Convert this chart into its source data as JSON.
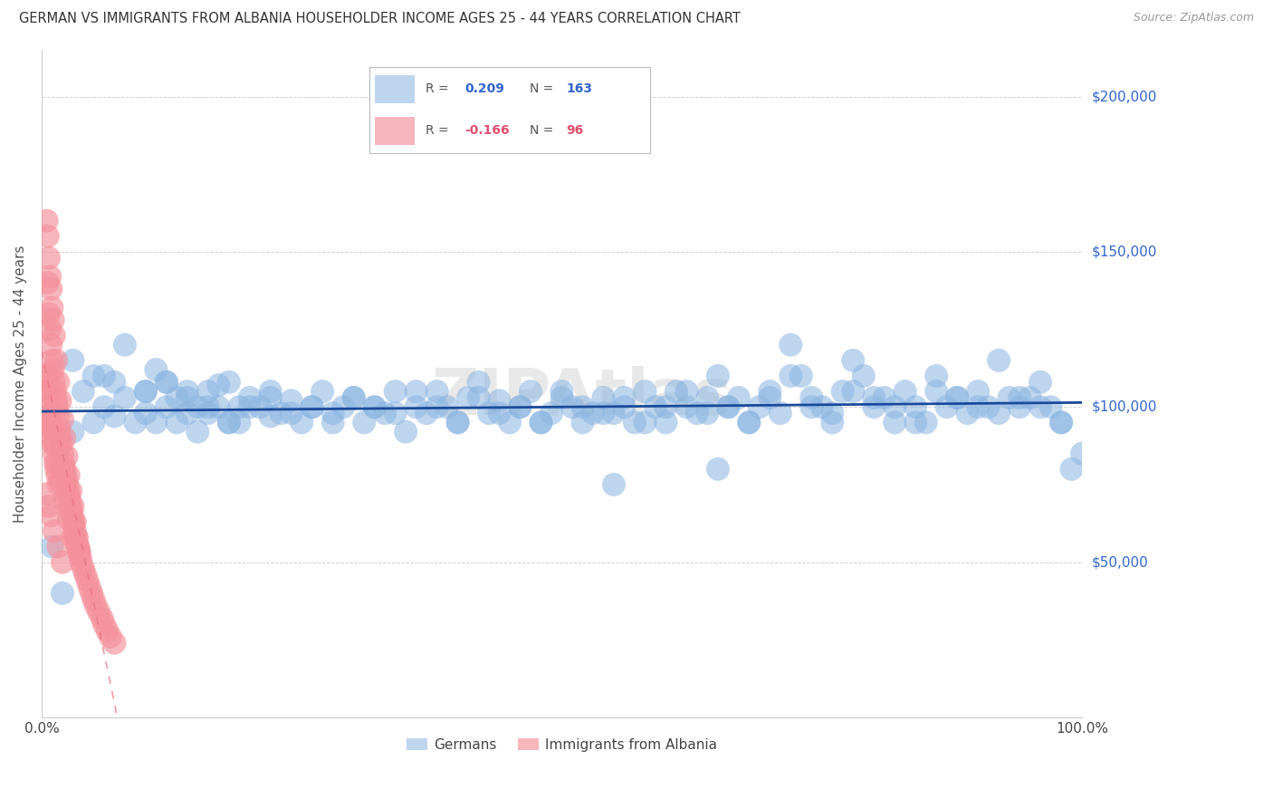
{
  "title": "GERMAN VS IMMIGRANTS FROM ALBANIA HOUSEHOLDER INCOME AGES 25 - 44 YEARS CORRELATION CHART",
  "source": "Source: ZipAtlas.com",
  "ylabel": "Householder Income Ages 25 - 44 years",
  "y_tick_values": [
    50000,
    100000,
    150000,
    200000
  ],
  "y_tick_labels": [
    "$50,000",
    "$100,000",
    "$150,000",
    "$200,000"
  ],
  "y_lim": [
    0,
    215000
  ],
  "x_lim": [
    0,
    1.0
  ],
  "watermark": "ZIPAtlas",
  "legend_german_R": "0.209",
  "legend_german_N": "163",
  "legend_albania_R": "-0.166",
  "legend_albania_N": "96",
  "blue_color": "#89B4E0",
  "pink_color": "#F4909A",
  "blue_line_color": "#1a4a9a",
  "pink_line_color": "#E87080",
  "german_x": [
    0.02,
    0.03,
    0.04,
    0.05,
    0.05,
    0.06,
    0.07,
    0.07,
    0.08,
    0.09,
    0.1,
    0.1,
    0.11,
    0.11,
    0.12,
    0.12,
    0.13,
    0.13,
    0.14,
    0.14,
    0.15,
    0.15,
    0.16,
    0.16,
    0.17,
    0.17,
    0.18,
    0.18,
    0.19,
    0.19,
    0.2,
    0.21,
    0.22,
    0.22,
    0.23,
    0.24,
    0.25,
    0.26,
    0.27,
    0.28,
    0.29,
    0.3,
    0.31,
    0.32,
    0.33,
    0.34,
    0.35,
    0.36,
    0.37,
    0.38,
    0.39,
    0.4,
    0.41,
    0.42,
    0.43,
    0.44,
    0.45,
    0.46,
    0.47,
    0.48,
    0.49,
    0.5,
    0.51,
    0.52,
    0.53,
    0.54,
    0.55,
    0.56,
    0.57,
    0.58,
    0.59,
    0.6,
    0.61,
    0.62,
    0.63,
    0.64,
    0.65,
    0.66,
    0.67,
    0.68,
    0.69,
    0.7,
    0.71,
    0.72,
    0.73,
    0.74,
    0.75,
    0.76,
    0.77,
    0.78,
    0.79,
    0.8,
    0.81,
    0.82,
    0.83,
    0.84,
    0.85,
    0.86,
    0.87,
    0.88,
    0.89,
    0.9,
    0.91,
    0.92,
    0.93,
    0.94,
    0.95,
    0.96,
    0.97,
    0.98,
    0.99,
    1.0,
    0.03,
    0.06,
    0.08,
    0.1,
    0.12,
    0.14,
    0.16,
    0.18,
    0.2,
    0.22,
    0.24,
    0.26,
    0.28,
    0.3,
    0.32,
    0.34,
    0.36,
    0.38,
    0.4,
    0.42,
    0.44,
    0.46,
    0.48,
    0.5,
    0.52,
    0.54,
    0.56,
    0.58,
    0.6,
    0.62,
    0.64,
    0.66,
    0.68,
    0.7,
    0.72,
    0.74,
    0.76,
    0.78,
    0.8,
    0.82,
    0.84,
    0.86,
    0.88,
    0.9,
    0.92,
    0.94,
    0.96,
    0.98,
    0.01,
    0.02,
    0.55,
    0.65
  ],
  "german_y": [
    40000,
    92000,
    105000,
    110000,
    95000,
    100000,
    108000,
    97000,
    103000,
    95000,
    105000,
    98000,
    112000,
    95000,
    100000,
    108000,
    95000,
    103000,
    98000,
    105000,
    100000,
    92000,
    105000,
    98000,
    100000,
    107000,
    95000,
    108000,
    100000,
    95000,
    103000,
    100000,
    97000,
    105000,
    98000,
    102000,
    95000,
    100000,
    105000,
    98000,
    100000,
    103000,
    95000,
    100000,
    98000,
    105000,
    92000,
    100000,
    98000,
    105000,
    100000,
    95000,
    103000,
    108000,
    98000,
    102000,
    95000,
    100000,
    105000,
    95000,
    98000,
    103000,
    100000,
    95000,
    98000,
    103000,
    98000,
    100000,
    95000,
    105000,
    100000,
    95000,
    105000,
    100000,
    98000,
    103000,
    110000,
    100000,
    103000,
    95000,
    100000,
    105000,
    98000,
    120000,
    110000,
    103000,
    100000,
    98000,
    105000,
    115000,
    110000,
    100000,
    103000,
    95000,
    105000,
    100000,
    95000,
    110000,
    100000,
    103000,
    98000,
    105000,
    100000,
    115000,
    103000,
    100000,
    103000,
    108000,
    100000,
    95000,
    80000,
    85000,
    115000,
    110000,
    120000,
    105000,
    108000,
    103000,
    100000,
    95000,
    100000,
    103000,
    98000,
    100000,
    95000,
    103000,
    100000,
    98000,
    105000,
    100000,
    95000,
    103000,
    98000,
    100000,
    95000,
    105000,
    100000,
    98000,
    103000,
    95000,
    100000,
    105000,
    98000,
    100000,
    95000,
    103000,
    110000,
    100000,
    95000,
    105000,
    103000,
    100000,
    95000,
    105000,
    103000,
    100000,
    98000,
    103000,
    100000,
    95000,
    55000,
    80000,
    75000,
    80000
  ],
  "albania_x": [
    0.004,
    0.005,
    0.005,
    0.006,
    0.006,
    0.007,
    0.007,
    0.008,
    0.008,
    0.009,
    0.009,
    0.01,
    0.01,
    0.011,
    0.011,
    0.012,
    0.012,
    0.013,
    0.013,
    0.014,
    0.014,
    0.015,
    0.015,
    0.016,
    0.016,
    0.017,
    0.018,
    0.019,
    0.02,
    0.021,
    0.022,
    0.023,
    0.024,
    0.025,
    0.026,
    0.027,
    0.028,
    0.029,
    0.03,
    0.031,
    0.032,
    0.033,
    0.034,
    0.035,
    0.036,
    0.037,
    0.038,
    0.04,
    0.042,
    0.044,
    0.046,
    0.048,
    0.05,
    0.052,
    0.055,
    0.058,
    0.06,
    0.063,
    0.066,
    0.07,
    0.005,
    0.006,
    0.007,
    0.008,
    0.009,
    0.01,
    0.011,
    0.012,
    0.014,
    0.016,
    0.018,
    0.02,
    0.022,
    0.024,
    0.026,
    0.028,
    0.03,
    0.032,
    0.034,
    0.036,
    0.005,
    0.006,
    0.008,
    0.01,
    0.012,
    0.015,
    0.018,
    0.022,
    0.026,
    0.03,
    0.005,
    0.007,
    0.009,
    0.012,
    0.016,
    0.02
  ],
  "albania_y": [
    97000,
    105000,
    95000,
    140000,
    108000,
    130000,
    100000,
    125000,
    95000,
    120000,
    93000,
    115000,
    90000,
    112000,
    88000,
    108000,
    85000,
    105000,
    82000,
    102000,
    80000,
    100000,
    78000,
    97000,
    75000,
    93000,
    90000,
    88000,
    85000,
    82000,
    80000,
    78000,
    76000,
    74000,
    72000,
    70000,
    68000,
    66000,
    64000,
    62000,
    60000,
    58000,
    56000,
    55000,
    53000,
    52000,
    50000,
    48000,
    46000,
    44000,
    42000,
    40000,
    38000,
    36000,
    34000,
    32000,
    30000,
    28000,
    26000,
    24000,
    160000,
    155000,
    148000,
    142000,
    138000,
    132000,
    128000,
    123000,
    115000,
    108000,
    102000,
    96000,
    90000,
    84000,
    78000,
    73000,
    68000,
    63000,
    58000,
    54000,
    110000,
    105000,
    98000,
    93000,
    88000,
    82000,
    76000,
    70000,
    64000,
    58000,
    72000,
    68000,
    65000,
    60000,
    55000,
    50000
  ]
}
